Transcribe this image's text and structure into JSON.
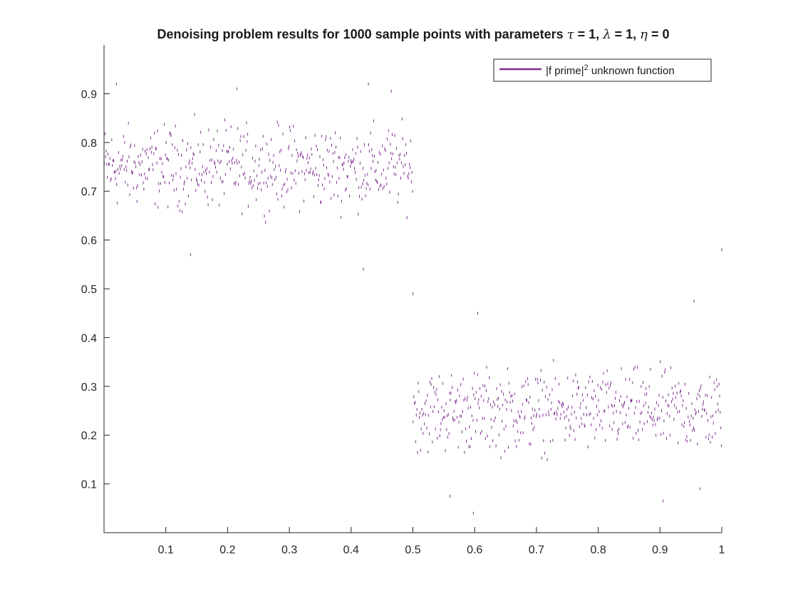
{
  "chart_data": {
    "type": "scatter",
    "title_parts": {
      "prefix": "Denoising problem results for 1000 sample points with parameters ",
      "tau_symbol": "τ",
      "tau_value": " = 1, ",
      "lambda_symbol": "λ",
      "lambda_value": " = 1, ",
      "eta_symbol": "η",
      "eta_value": " = 0"
    },
    "xlabel": "",
    "ylabel": "",
    "xlim": [
      0,
      1
    ],
    "ylim": [
      0,
      1
    ],
    "x_ticks": [
      0.1,
      0.2,
      0.3,
      0.4,
      0.5,
      0.6,
      0.7,
      0.8,
      0.9,
      1
    ],
    "x_tick_labels": [
      "0.1",
      "0.2",
      "0.3",
      "0.4",
      "0.5",
      "0.6",
      "0.7",
      "0.8",
      "0.9",
      "1"
    ],
    "y_ticks": [
      0.1,
      0.2,
      0.3,
      0.4,
      0.5,
      0.6,
      0.7,
      0.8,
      0.9
    ],
    "y_tick_labels": [
      "0.1",
      "0.2",
      "0.3",
      "0.4",
      "0.5",
      "0.6",
      "0.7",
      "0.8",
      "0.9"
    ],
    "grid": false,
    "legend": {
      "placement": "top-right",
      "label_main": "|f prime|",
      "label_sup": "2",
      "label_rest": " unknown function"
    },
    "series": [
      {
        "name": "|f prime|^2 unknown function",
        "color": "#7e2f8e",
        "marker": "point",
        "sample_count": 1000,
        "segments": [
          {
            "x_range": [
              0,
              0.5
            ],
            "center": 0.75,
            "spread": 0.09
          },
          {
            "x_range": [
              0.5,
              1
            ],
            "center": 0.25,
            "spread": 0.09
          }
        ],
        "highlighted_points": [
          [
            0.02,
            0.92
          ],
          [
            0.428,
            0.92
          ],
          [
            0.215,
            0.91
          ],
          [
            0.465,
            0.905
          ],
          [
            0.14,
            0.57
          ],
          [
            0.42,
            0.54
          ],
          [
            0.5,
            0.49
          ],
          [
            1.0,
            0.58
          ],
          [
            0.955,
            0.475
          ],
          [
            0.605,
            0.45
          ],
          [
            0.56,
            0.075
          ],
          [
            0.598,
            0.04
          ],
          [
            0.905,
            0.065
          ],
          [
            0.965,
            0.09
          ]
        ]
      }
    ]
  }
}
